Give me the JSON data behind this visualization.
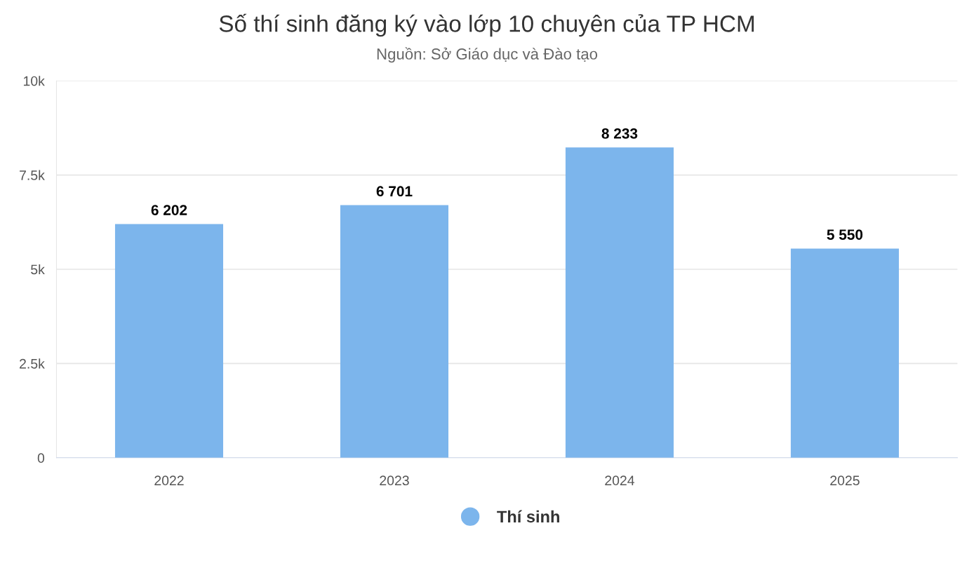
{
  "chart_data": {
    "type": "bar",
    "title": "Số thí sinh đăng ký vào lớp 10 chuyên của TP HCM",
    "subtitle": "Nguồn: Sở Giáo dục và Đào tạo",
    "categories": [
      "2022",
      "2023",
      "2024",
      "2025"
    ],
    "series": [
      {
        "name": "Thí sinh",
        "color": "#7cb5ec",
        "values": [
          6202,
          6701,
          8233,
          5550
        ],
        "value_labels": [
          "6 202",
          "6 701",
          "8 233",
          "5 550"
        ]
      }
    ],
    "ylim": [
      0,
      10000
    ],
    "yticks": [
      0,
      {
        "value": 2500,
        "label": "2.5k"
      },
      {
        "value": 5000,
        "label": "5k"
      },
      {
        "value": 7500,
        "label": "7.5k"
      },
      {
        "value": 10000,
        "label": "10k"
      }
    ],
    "grid": "y",
    "legend": "bottom",
    "marker": "circle"
  }
}
